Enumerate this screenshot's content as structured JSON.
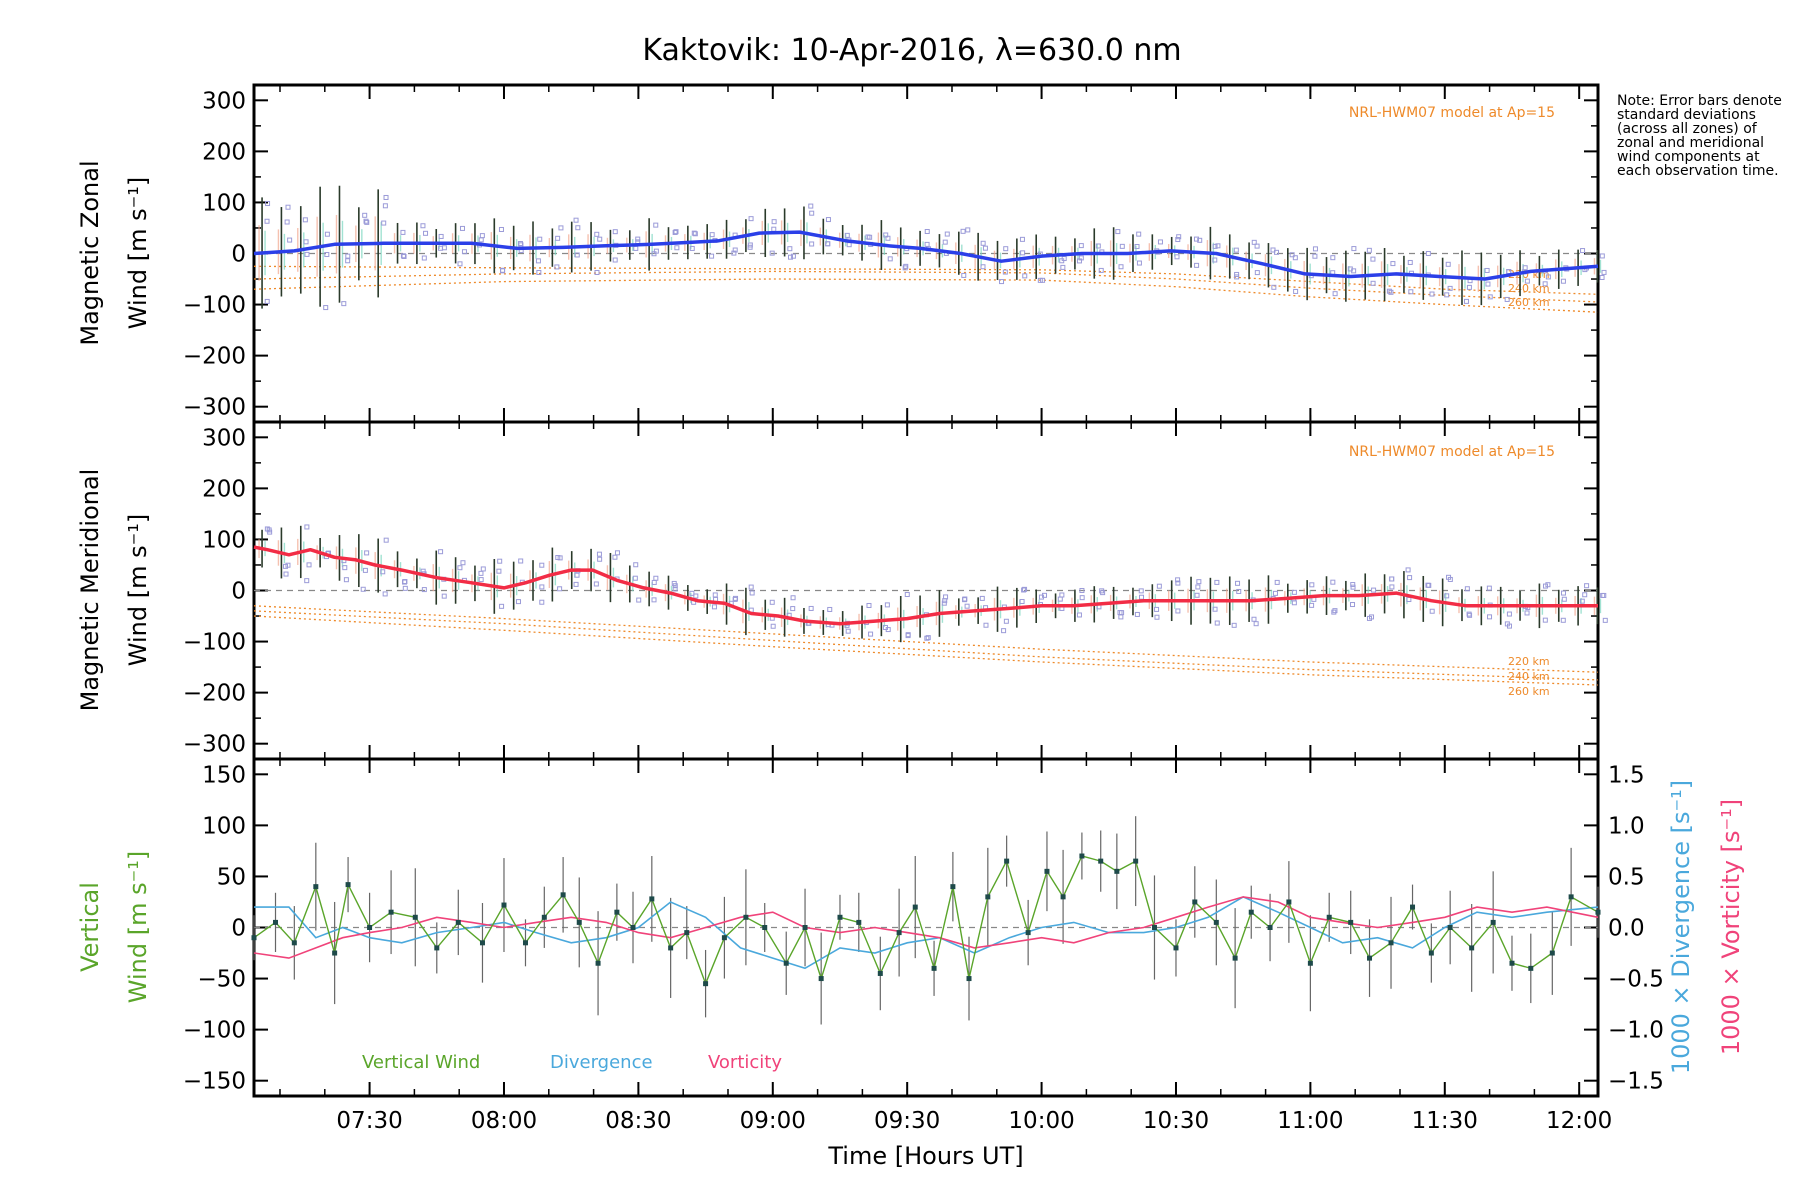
{
  "title": "Kaktovik: 10-Apr-2016, λ=630.0 nm",
  "note": "Note: Error bars denote standard deviations (across all zones) of zonal and meridional wind components at each observation time.",
  "colors": {
    "zonal": "#2b3fe8",
    "meridional": "#f22c45",
    "vertical": "#5aa52a",
    "divergence": "#4aa8dc",
    "vorticity": "#f0437a",
    "model": "#ee8a2a",
    "zone_points": "#9b9bd8"
  },
  "chart_data": [
    {
      "type": "line",
      "panel": "zonal",
      "ylabel_line1": "Magnetic Zonal",
      "ylabel_line2": "Wind [m s⁻¹]",
      "ylim": [
        -330,
        330
      ],
      "yticks": [
        300,
        200,
        100,
        0,
        -100,
        -200,
        -300
      ],
      "xlim": [
        7.07,
        12.07
      ],
      "model_label": "NRL-HWM07 model at Ap=15",
      "model_altitudes": [
        "220 km",
        "240 km",
        "260 km"
      ],
      "model_curves": [
        {
          "x": [
            7.07,
            8.0,
            9.0,
            10.0,
            10.5,
            11.0,
            11.5,
            12.07
          ],
          "y": [
            -25,
            -28,
            -30,
            -32,
            -40,
            -55,
            -70,
            -80
          ]
        },
        {
          "x": [
            7.07,
            8.0,
            9.0,
            10.0,
            10.5,
            11.0,
            11.5,
            12.07
          ],
          "y": [
            -50,
            -40,
            -35,
            -38,
            -50,
            -68,
            -82,
            -95
          ]
        },
        {
          "x": [
            7.07,
            8.0,
            9.0,
            10.0,
            10.5,
            11.0,
            11.5,
            12.07
          ],
          "y": [
            -70,
            -55,
            -50,
            -52,
            -65,
            -85,
            -100,
            -115
          ]
        }
      ],
      "series": [
        {
          "name": "Magnetic Zonal Wind",
          "x": [
            7.07,
            7.22,
            7.37,
            7.55,
            7.72,
            7.88,
            8.05,
            8.22,
            8.38,
            8.55,
            8.7,
            8.8,
            8.95,
            9.1,
            9.27,
            9.43,
            9.55,
            9.7,
            9.85,
            10.0,
            10.15,
            10.32,
            10.48,
            10.65,
            10.82,
            10.98,
            11.15,
            11.32,
            11.48,
            11.65,
            11.82,
            12.07
          ],
          "y": [
            0,
            5,
            18,
            20,
            20,
            20,
            10,
            12,
            15,
            18,
            22,
            25,
            40,
            42,
            25,
            15,
            10,
            0,
            -15,
            -5,
            0,
            0,
            5,
            0,
            -20,
            -40,
            -45,
            -40,
            -45,
            -50,
            -35,
            -25
          ]
        }
      ]
    },
    {
      "type": "line",
      "panel": "meridional",
      "ylabel_line1": "Magnetic Meridional",
      "ylabel_line2": "Wind [m s⁻¹]",
      "ylim": [
        -330,
        330
      ],
      "yticks": [
        300,
        200,
        100,
        0,
        -100,
        -200,
        -300
      ],
      "xlim": [
        7.07,
        12.07
      ],
      "model_label": "NRL-HWM07 model at Ap=15",
      "model_altitudes": [
        "220 km",
        "240 km",
        "260 km"
      ],
      "model_curves": [
        {
          "x": [
            7.07,
            8.0,
            9.0,
            10.0,
            11.0,
            12.07
          ],
          "y": [
            -30,
            -55,
            -85,
            -115,
            -140,
            -160
          ]
        },
        {
          "x": [
            7.07,
            8.0,
            9.0,
            10.0,
            11.0,
            12.07
          ],
          "y": [
            -40,
            -65,
            -98,
            -130,
            -155,
            -175
          ]
        },
        {
          "x": [
            7.07,
            8.0,
            9.0,
            10.0,
            11.0,
            12.07
          ],
          "y": [
            -50,
            -78,
            -110,
            -140,
            -165,
            -185
          ]
        }
      ],
      "series": [
        {
          "name": "Magnetic Meridional Wind",
          "x": [
            7.07,
            7.12,
            7.2,
            7.28,
            7.37,
            7.45,
            7.52,
            7.62,
            7.75,
            7.88,
            8.0,
            8.08,
            8.17,
            8.25,
            8.33,
            8.42,
            8.52,
            8.62,
            8.72,
            8.82,
            8.92,
            9.02,
            9.12,
            9.25,
            9.38,
            9.5,
            9.62,
            9.75,
            9.88,
            10.0,
            10.12,
            10.25,
            10.38,
            10.52,
            10.65,
            10.78,
            10.92,
            11.05,
            11.18,
            11.32,
            11.45,
            11.58,
            11.72,
            11.85,
            12.07
          ],
          "y": [
            85,
            80,
            70,
            80,
            65,
            60,
            50,
            40,
            25,
            15,
            5,
            15,
            30,
            40,
            40,
            20,
            5,
            -5,
            -20,
            -25,
            -45,
            -50,
            -60,
            -65,
            -60,
            -55,
            -45,
            -40,
            -35,
            -30,
            -30,
            -25,
            -20,
            -20,
            -20,
            -20,
            -15,
            -10,
            -10,
            -5,
            -20,
            -30,
            -30,
            -30,
            -30
          ]
        }
      ]
    },
    {
      "type": "line",
      "panel": "vertical",
      "ylabel_line1": "Vertical",
      "ylabel_line2": "Wind [m s⁻¹]",
      "ylim": [
        -165,
        165
      ],
      "yticks": [
        150,
        100,
        50,
        0,
        -50,
        -100,
        -150
      ],
      "y2label_div": "1000 × Divergence [s⁻¹]",
      "y2label_vort": "1000 × Vorticity [s⁻¹]",
      "y2lim": [
        -1.65,
        1.65
      ],
      "y2ticks": [
        "1.5",
        "1.0",
        "0.5",
        "0.0",
        "-0.5",
        "-1.0",
        "-1.5"
      ],
      "legend": [
        "Vertical Wind",
        "Divergence",
        "Vorticity"
      ],
      "series": [
        {
          "name": "Vertical Wind",
          "axis": "left",
          "x": [
            7.07,
            7.15,
            7.22,
            7.3,
            7.37,
            7.42,
            7.5,
            7.58,
            7.67,
            7.75,
            7.83,
            7.92,
            8.0,
            8.08,
            8.15,
            8.22,
            8.28,
            8.35,
            8.42,
            8.48,
            8.55,
            8.62,
            8.68,
            8.75,
            8.82,
            8.9,
            8.97,
            9.05,
            9.12,
            9.18,
            9.25,
            9.32,
            9.4,
            9.47,
            9.53,
            9.6,
            9.67,
            9.73,
            9.8,
            9.87,
            9.95,
            10.02,
            10.08,
            10.15,
            10.22,
            10.28,
            10.35,
            10.42,
            10.5,
            10.57,
            10.65,
            10.72,
            10.78,
            10.85,
            10.92,
            11.0,
            11.07,
            11.15,
            11.22,
            11.3,
            11.38,
            11.45,
            11.52,
            11.6,
            11.68,
            11.75,
            11.82,
            11.9,
            11.97,
            12.07
          ],
          "y": [
            -10,
            5,
            -15,
            40,
            -25,
            42,
            0,
            15,
            10,
            -20,
            5,
            -15,
            22,
            -15,
            10,
            32,
            5,
            -35,
            15,
            0,
            28,
            -20,
            -5,
            -55,
            -10,
            10,
            0,
            -35,
            0,
            -50,
            10,
            5,
            -45,
            -5,
            20,
            -40,
            40,
            -50,
            30,
            65,
            -5,
            55,
            30,
            70,
            65,
            55,
            65,
            0,
            -20,
            25,
            5,
            -30,
            15,
            0,
            25,
            -35,
            10,
            5,
            -30,
            -15,
            20,
            -25,
            0,
            -20,
            5,
            -35,
            -40,
            -25,
            30,
            15
          ]
        },
        {
          "name": "Divergence",
          "axis": "right",
          "x": [
            7.07,
            7.2,
            7.3,
            7.4,
            7.5,
            7.62,
            7.75,
            7.88,
            8.0,
            8.12,
            8.25,
            8.38,
            8.5,
            8.62,
            8.75,
            8.88,
            9.0,
            9.12,
            9.25,
            9.38,
            9.5,
            9.62,
            9.75,
            9.88,
            10.0,
            10.12,
            10.25,
            10.38,
            10.5,
            10.62,
            10.75,
            10.88,
            11.0,
            11.12,
            11.25,
            11.38,
            11.5,
            11.62,
            11.75,
            11.88,
            12.07
          ],
          "y": [
            0.2,
            0.2,
            -0.1,
            0.0,
            -0.1,
            -0.15,
            -0.05,
            0.0,
            0.05,
            -0.05,
            -0.15,
            -0.1,
            0.0,
            0.25,
            0.1,
            -0.2,
            -0.3,
            -0.4,
            -0.2,
            -0.25,
            -0.15,
            -0.1,
            -0.25,
            -0.1,
            0.0,
            0.05,
            -0.05,
            -0.05,
            0.0,
            0.1,
            0.3,
            0.15,
            0.0,
            -0.15,
            -0.1,
            -0.2,
            0.0,
            0.15,
            0.1,
            0.15,
            0.2
          ]
        },
        {
          "name": "Vorticity",
          "axis": "right",
          "x": [
            7.07,
            7.2,
            7.3,
            7.4,
            7.5,
            7.62,
            7.75,
            7.88,
            8.0,
            8.12,
            8.25,
            8.38,
            8.5,
            8.62,
            8.75,
            8.88,
            9.0,
            9.12,
            9.25,
            9.38,
            9.5,
            9.62,
            9.75,
            9.88,
            10.0,
            10.12,
            10.25,
            10.38,
            10.5,
            10.62,
            10.75,
            10.88,
            11.0,
            11.12,
            11.25,
            11.38,
            11.5,
            11.62,
            11.75,
            11.88,
            12.07
          ],
          "y": [
            -0.25,
            -0.3,
            -0.2,
            -0.1,
            -0.05,
            0.0,
            0.1,
            0.05,
            0.0,
            0.05,
            0.1,
            0.05,
            -0.05,
            -0.1,
            0.0,
            0.1,
            0.15,
            0.0,
            -0.05,
            0.0,
            -0.05,
            -0.1,
            -0.2,
            -0.15,
            -0.1,
            -0.15,
            -0.05,
            0.0,
            0.1,
            0.2,
            0.3,
            0.25,
            0.1,
            0.05,
            0.0,
            0.05,
            0.1,
            0.2,
            0.15,
            0.2,
            0.1
          ]
        }
      ]
    }
  ],
  "x_axis": {
    "label": "Time [Hours UT]",
    "tick_values": [
      7.5,
      8.0,
      8.5,
      9.0,
      9.5,
      10.0,
      10.5,
      11.0,
      11.5,
      12.0
    ],
    "tick_labels": [
      "07:30",
      "08:00",
      "08:30",
      "09:00",
      "09:30",
      "10:00",
      "10:30",
      "11:00",
      "11:30",
      "12:00"
    ]
  }
}
